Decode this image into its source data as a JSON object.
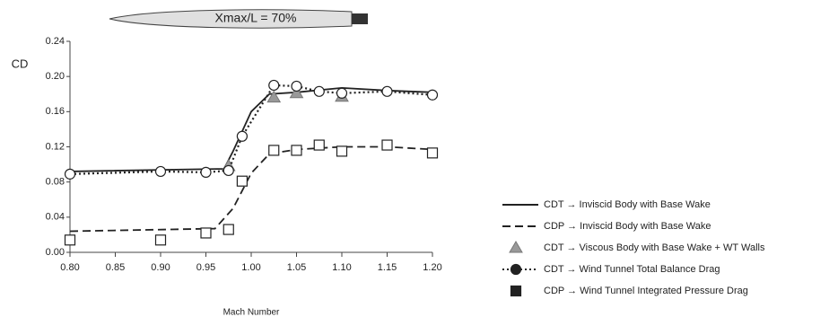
{
  "chart_data": {
    "type": "line",
    "body_label": "Xmax/L = 70%",
    "y_label": "CD",
    "x_label": "Mach Number",
    "xlim": [
      0.8,
      1.2
    ],
    "xticks": [
      {
        "value": 0.8,
        "label": "0.80"
      },
      {
        "value": 0.85,
        "label": "0.85"
      },
      {
        "value": 0.9,
        "label": "0.90"
      },
      {
        "value": 0.95,
        "label": "0.95"
      },
      {
        "value": 1.0,
        "label": "1.00"
      },
      {
        "value": 1.05,
        "label": "1.05"
      },
      {
        "value": 1.1,
        "label": "1.10"
      },
      {
        "value": 1.15,
        "label": "1.15"
      },
      {
        "value": 1.2,
        "label": "1.20"
      }
    ],
    "ylim": [
      0,
      0.24
    ],
    "yticks": [
      {
        "value": 0,
        "label": "0.00"
      },
      {
        "value": 0.04,
        "label": "0.04"
      },
      {
        "value": 0.08,
        "label": "0.08"
      },
      {
        "value": 0.12,
        "label": "0.12"
      },
      {
        "value": 0.16,
        "label": "0.16"
      },
      {
        "value": 0.2,
        "label": "0.20"
      },
      {
        "value": 0.24,
        "label": "0.24"
      }
    ],
    "grid": false,
    "legend": "right",
    "series": [
      {
        "name": "CDT → Inviscid Body with Base Wake",
        "color": "#222222",
        "line": "solid",
        "marker": "none",
        "x": [
          0.8,
          0.97,
          0.98,
          1.0,
          1.02,
          1.05,
          1.1,
          1.15,
          1.2
        ],
        "values": [
          0.092,
          0.095,
          0.115,
          0.16,
          0.18,
          0.182,
          0.187,
          0.184,
          0.182
        ]
      },
      {
        "name": "CDP → Inviscid Body with Base Wake",
        "color": "#222222",
        "line": "dashed",
        "marker": "none",
        "x": [
          0.8,
          0.96,
          0.98,
          1.0,
          1.02,
          1.05,
          1.1,
          1.15,
          1.2
        ],
        "values": [
          0.024,
          0.027,
          0.05,
          0.09,
          0.112,
          0.117,
          0.12,
          0.12,
          0.117
        ]
      },
      {
        "name": "CDT → Viscous Body with Base Wake + WT Walls",
        "color": "#999999",
        "line": "none",
        "marker": "triangle",
        "x": [
          0.975,
          1.025,
          1.05,
          1.1
        ],
        "values": [
          0.098,
          0.176,
          0.181,
          0.177
        ]
      },
      {
        "name": "CDT → Wind Tunnel Total Balance Drag",
        "color": "#222222",
        "line": "dotted",
        "marker": "circle",
        "x": [
          0.8,
          0.9,
          0.95,
          0.975,
          0.99,
          1.025,
          1.05,
          1.075,
          1.1,
          1.15,
          1.2
        ],
        "values": [
          0.089,
          0.092,
          0.091,
          0.093,
          0.132,
          0.19,
          0.189,
          0.183,
          0.181,
          0.183,
          0.179
        ]
      },
      {
        "name": "CDP → Wind Tunnel Integrated Pressure Drag",
        "color": "#222222",
        "line": "none",
        "marker": "square",
        "x": [
          0.8,
          0.9,
          0.95,
          0.975,
          0.99,
          1.025,
          1.05,
          1.075,
          1.1,
          1.15,
          1.2
        ],
        "values": [
          0.014,
          0.014,
          0.022,
          0.026,
          0.081,
          0.116,
          0.116,
          0.122,
          0.115,
          0.122,
          0.113
        ]
      }
    ]
  }
}
